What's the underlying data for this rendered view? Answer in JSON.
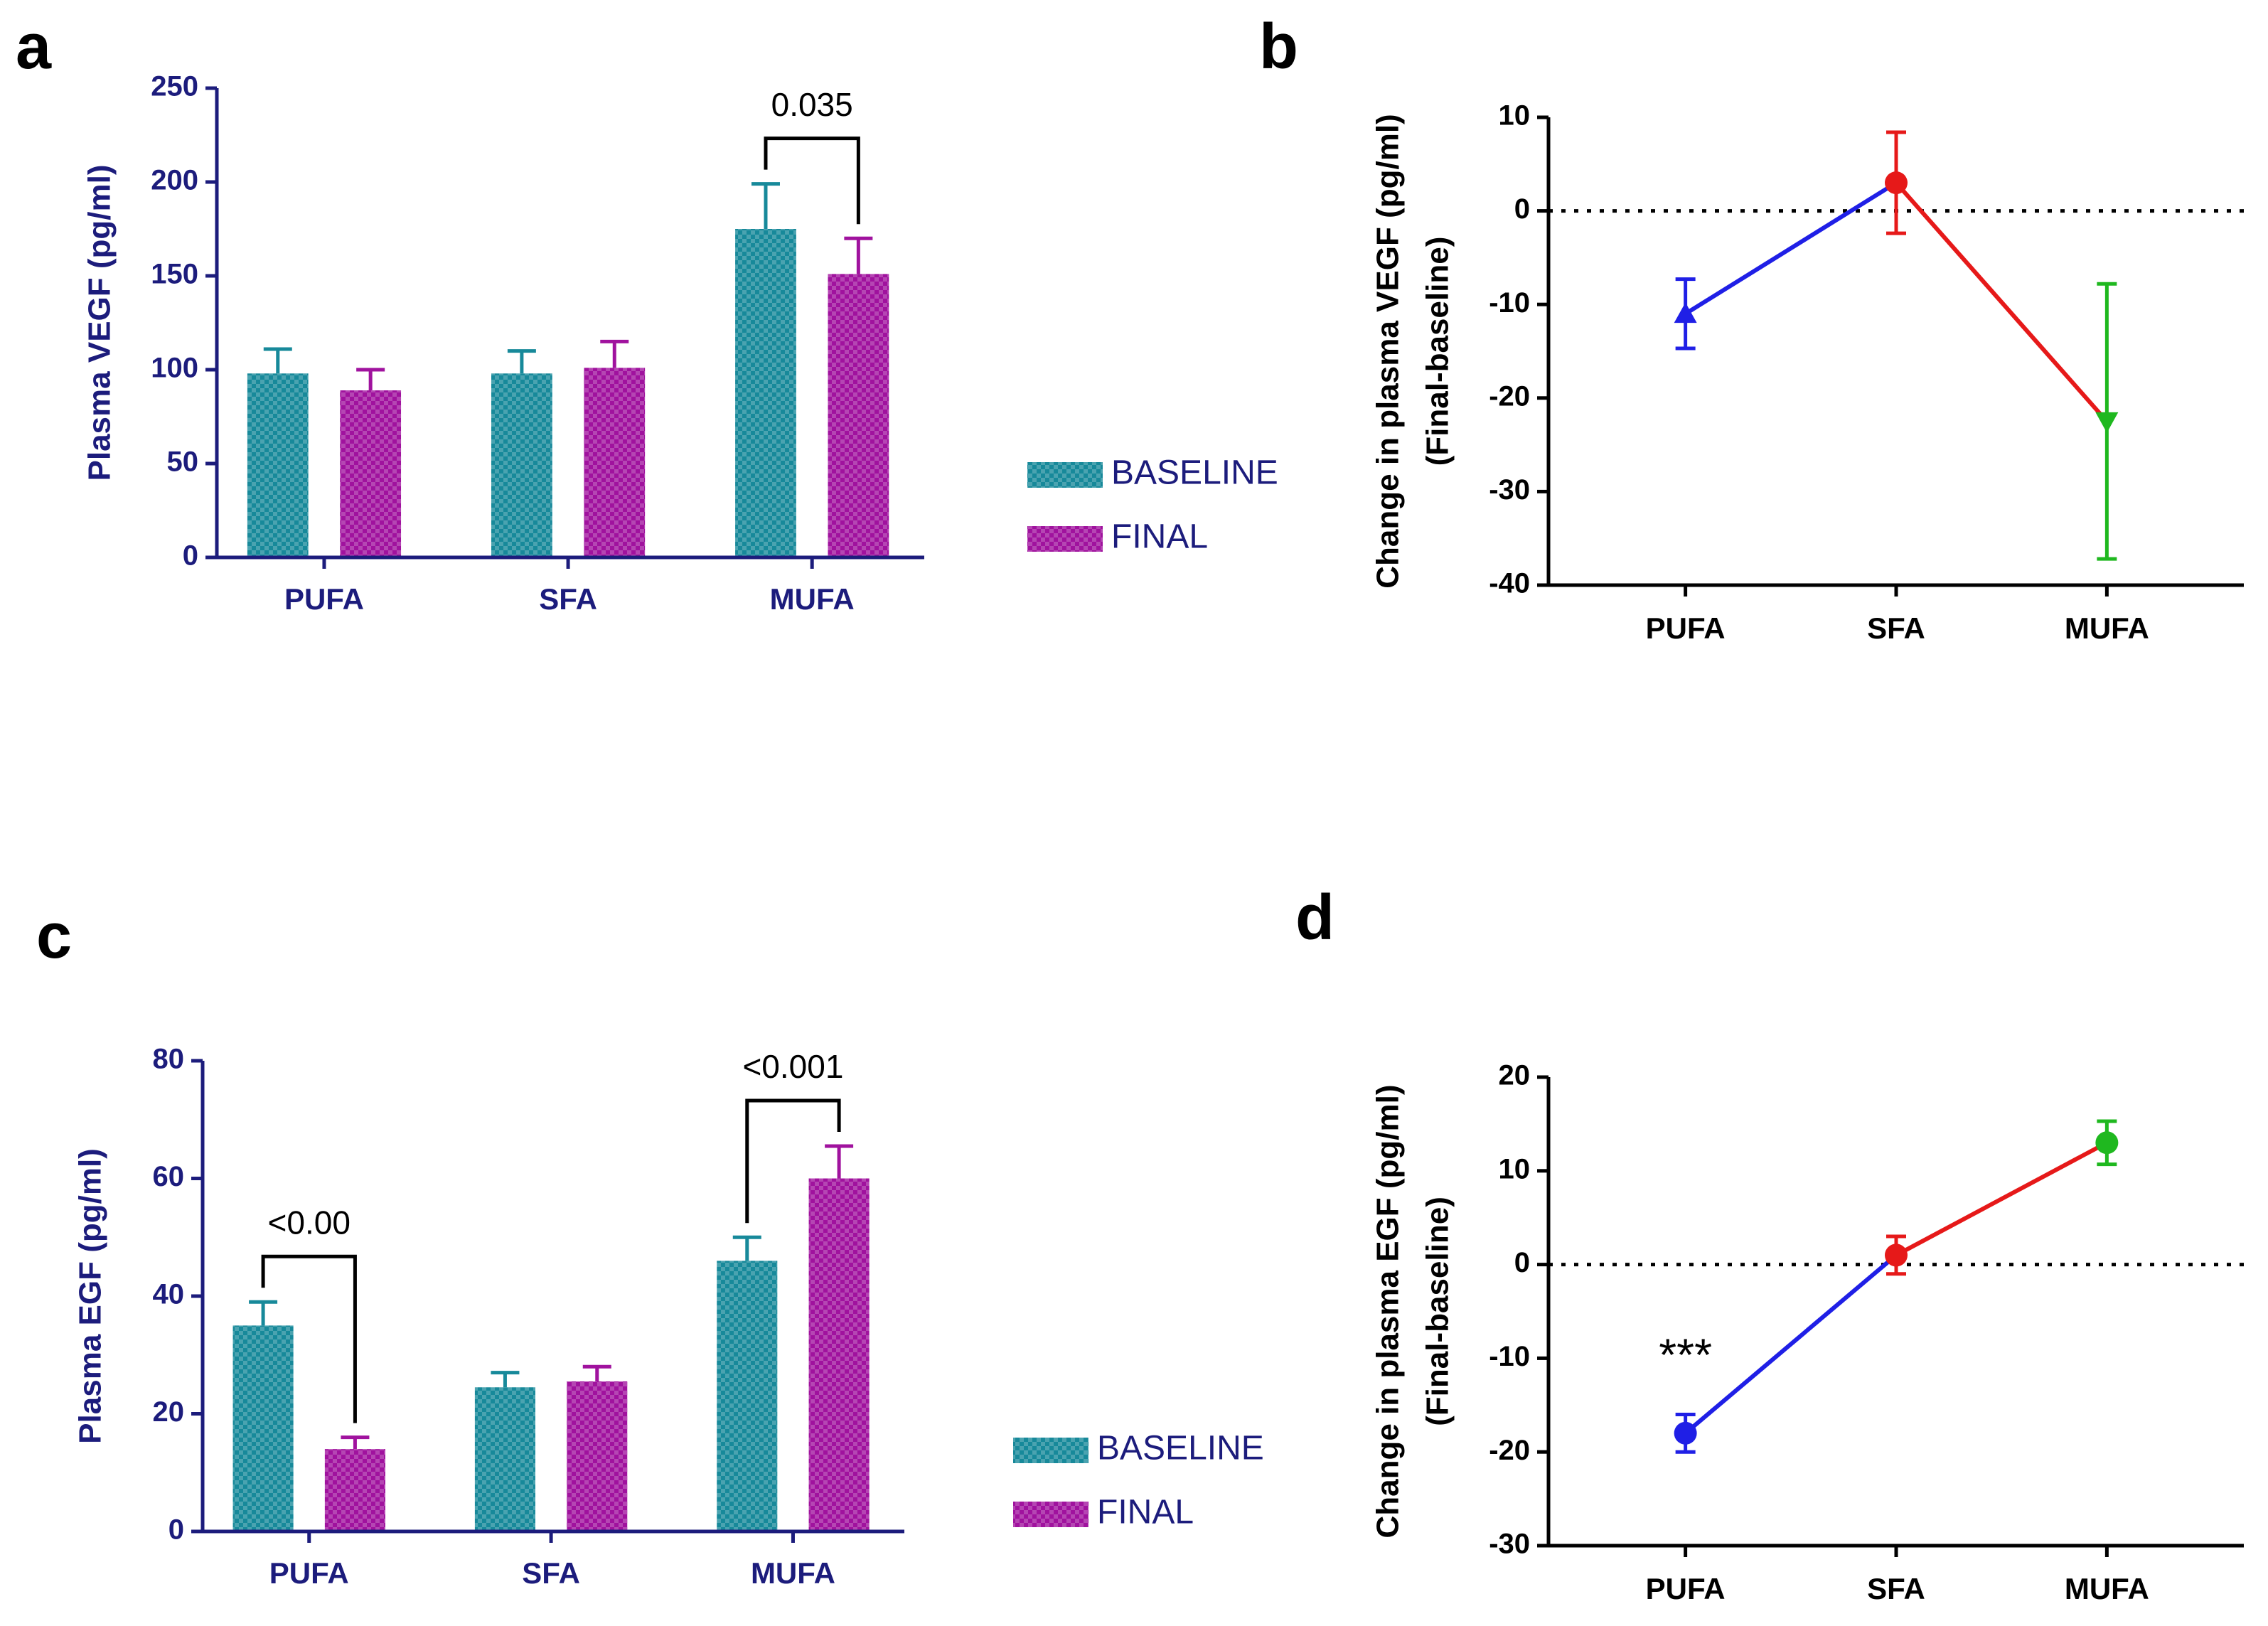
{
  "chart_data": [
    {
      "type": "bar",
      "panel_label": "a",
      "ylabel": "Plasma  VEGF (pg/ml)",
      "axis_color": "#1c1c7c",
      "categories": [
        "PUFA",
        "SFA",
        "MUFA"
      ],
      "series": [
        {
          "name": "BASELINE",
          "color": "#17899a",
          "values": [
            98,
            98,
            175
          ],
          "errors": [
            13,
            12,
            24
          ]
        },
        {
          "name": "FINAL",
          "color": "#a0129e",
          "values": [
            89,
            101,
            151
          ],
          "errors": [
            11,
            14,
            19
          ]
        }
      ],
      "annotations": [
        "0.035"
      ],
      "ylim": [
        0,
        250
      ],
      "yticks": [
        0,
        50,
        100,
        150,
        200,
        250
      ]
    },
    {
      "type": "line",
      "panel_label": "b",
      "ylabel": [
        "Change in plasma VEGF (pg/ml)",
        "(Final-baseline)"
      ],
      "axis_color": "#000000",
      "categories": [
        "PUFA",
        "SFA",
        "MUFA"
      ],
      "values": [
        -11,
        3,
        -22.5
      ],
      "errors": [
        3.7,
        5.4,
        14.7
      ],
      "colors": [
        "#1f1fe6",
        "#e61919",
        "#1fb81f"
      ],
      "markers": [
        "triangle",
        "circle",
        "triangle-down"
      ],
      "ylim": [
        -40,
        10
      ],
      "yticks": [
        -40,
        -30,
        -20,
        -10,
        0,
        10
      ],
      "zero_line": true
    },
    {
      "type": "bar",
      "panel_label": "c",
      "ylabel": "Plasma  EGF (pg/ml)",
      "axis_color": "#1c1c7c",
      "categories": [
        "PUFA",
        "SFA",
        "MUFA"
      ],
      "series": [
        {
          "name": "BASELINE",
          "color": "#17899a",
          "values": [
            35,
            24.5,
            46
          ],
          "errors": [
            4,
            2.5,
            4
          ]
        },
        {
          "name": "FINAL",
          "color": "#a0129e",
          "values": [
            14,
            25.5,
            60
          ],
          "errors": [
            2,
            2.5,
            5.5
          ]
        }
      ],
      "annotations": [
        "<0.00",
        "<0.001"
      ],
      "ylim": [
        0,
        80
      ],
      "yticks": [
        0,
        20,
        40,
        60,
        80
      ]
    },
    {
      "type": "line",
      "panel_label": "d",
      "ylabel": [
        "Change in plasma EGF (pg/ml)",
        "(Final-baseline)"
      ],
      "axis_color": "#000000",
      "categories": [
        "PUFA",
        "SFA",
        "MUFA"
      ],
      "values": [
        -18,
        1,
        13
      ],
      "errors": [
        2,
        2,
        2.3
      ],
      "colors": [
        "#1f1fe6",
        "#e61919",
        "#1fb81f"
      ],
      "markers": [
        "circle",
        "circle",
        "circle"
      ],
      "annotations": [
        "***"
      ],
      "ylim": [
        -30,
        20
      ],
      "yticks": [
        -30,
        -20,
        -10,
        0,
        10,
        20
      ],
      "zero_line": true
    }
  ]
}
